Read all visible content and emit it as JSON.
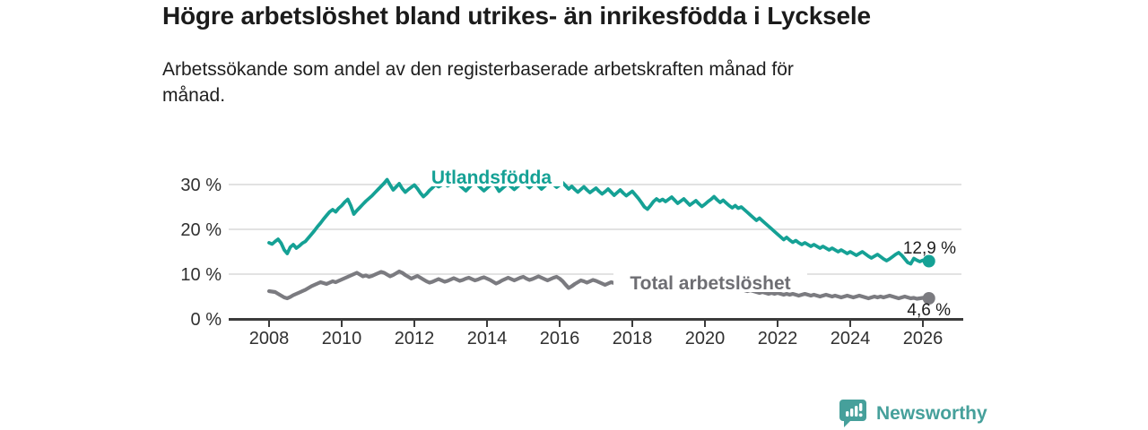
{
  "header": {
    "title": "Högre arbetslöshet bland utrikes- än inrikesfödda i Lycksele",
    "subtitle": "Arbetssökande som andel av den registerbaserade arbetskraften månad för\nmånad."
  },
  "chart_data": {
    "type": "line",
    "x_unit": "monthly",
    "x_start_year": 2008,
    "points_per_year": 12,
    "xlim": [
      2008,
      2027.1
    ],
    "ylim": [
      0,
      34
    ],
    "grid": "horizontal",
    "legend": "inline-labels",
    "x_tick_labels": [
      "2008",
      "2010",
      "2012",
      "2014",
      "2016",
      "2018",
      "2020",
      "2022",
      "2024",
      "2026"
    ],
    "x_tick_values": [
      2008,
      2010,
      2012,
      2014,
      2016,
      2018,
      2020,
      2022,
      2024,
      2026
    ],
    "y_tick_labels": [
      "0 %",
      "10 %",
      "20 %",
      "30 %"
    ],
    "y_tick_values": [
      0,
      10,
      20,
      30
    ],
    "axis_color": "#3b3b3b",
    "grid_color": "#d8d8d8",
    "tick_label_color": "#303030",
    "end_label_color": "#1e1e1e",
    "series": [
      {
        "name": "Utlandsfödda",
        "color": "#15a195",
        "label_color": "#15a195",
        "end_label": "12,9 %",
        "end_value": 12.9,
        "values": [
          17.0,
          16.7,
          17.3,
          17.8,
          16.9,
          15.4,
          14.6,
          16.0,
          16.6,
          15.8,
          16.3,
          16.9,
          17.3,
          18.1,
          18.9,
          19.7,
          20.6,
          21.4,
          22.3,
          23.1,
          23.9,
          24.4,
          23.9,
          24.7,
          25.3,
          26.1,
          26.7,
          25.3,
          23.4,
          24.2,
          24.9,
          25.6,
          26.3,
          26.9,
          27.5,
          28.2,
          28.9,
          29.6,
          30.3,
          31.1,
          29.9,
          28.8,
          29.5,
          30.2,
          29.1,
          28.3,
          28.9,
          29.4,
          29.9,
          29.1,
          28.1,
          27.3,
          27.9,
          28.7,
          29.3,
          30.0,
          29.5,
          29.9,
          30.3,
          29.7,
          30.1,
          31.4,
          30.6,
          29.8,
          29.2,
          28.6,
          29.3,
          30.0,
          30.5,
          29.9,
          29.2,
          28.6,
          29.2,
          29.8,
          30.3,
          29.6,
          28.5,
          29.1,
          29.7,
          30.2,
          29.5,
          28.9,
          29.5,
          30.1,
          30.5,
          29.9,
          29.3,
          29.9,
          30.4,
          29.7,
          29.0,
          29.6,
          30.2,
          30.7,
          30.0,
          29.4,
          29.9,
          30.4,
          29.7,
          29.0,
          29.6,
          28.9,
          28.3,
          28.9,
          29.5,
          28.8,
          28.2,
          28.7,
          29.2,
          28.5,
          27.9,
          28.4,
          29.0,
          28.3,
          27.6,
          28.2,
          28.8,
          28.1,
          27.5,
          28.0,
          28.5,
          27.7,
          26.9,
          26.0,
          25.0,
          24.5,
          25.3,
          26.2,
          26.8,
          26.3,
          26.7,
          26.2,
          26.7,
          27.2,
          26.5,
          25.8,
          26.3,
          26.8,
          26.1,
          25.4,
          25.9,
          26.4,
          25.7,
          25.1,
          25.6,
          26.2,
          26.7,
          27.3,
          26.6,
          26.0,
          26.5,
          25.9,
          25.3,
          24.8,
          25.3,
          24.7,
          25.0,
          24.4,
          23.8,
          23.2,
          22.6,
          22.0,
          22.5,
          21.9,
          21.3,
          20.7,
          20.1,
          19.5,
          18.9,
          18.3,
          17.7,
          18.2,
          17.6,
          17.1,
          17.5,
          17.0,
          16.6,
          17.0,
          16.6,
          16.2,
          16.6,
          16.2,
          15.8,
          16.2,
          15.8,
          15.4,
          15.8,
          15.4,
          15.0,
          15.4,
          15.0,
          14.6,
          15.0,
          14.6,
          14.2,
          14.6,
          15.0,
          14.5,
          14.0,
          13.6,
          14.0,
          14.4,
          13.9,
          13.4,
          13.0,
          13.4,
          13.9,
          14.4,
          14.8,
          14.2,
          13.4,
          12.6,
          12.3,
          13.5,
          13.1,
          12.8,
          13.1,
          12.9,
          12.9
        ]
      },
      {
        "name": "Total arbetslöshet",
        "color": "#7b7b80",
        "label_color": "#6e6e73",
        "end_label": "4,6 %",
        "end_value": 4.6,
        "values": [
          6.2,
          6.1,
          6.0,
          5.6,
          5.2,
          4.8,
          4.6,
          4.9,
          5.3,
          5.6,
          5.9,
          6.2,
          6.5,
          6.9,
          7.3,
          7.6,
          7.9,
          8.2,
          8.0,
          7.8,
          8.1,
          8.4,
          8.2,
          8.5,
          8.8,
          9.1,
          9.4,
          9.7,
          10.0,
          10.3,
          9.9,
          9.5,
          9.7,
          9.4,
          9.6,
          9.9,
          10.2,
          10.5,
          10.3,
          9.9,
          9.5,
          9.8,
          10.2,
          10.6,
          10.3,
          9.8,
          9.4,
          9.0,
          9.3,
          9.6,
          9.2,
          8.8,
          8.4,
          8.1,
          8.3,
          8.6,
          8.9,
          8.6,
          8.3,
          8.5,
          8.8,
          9.1,
          8.8,
          8.5,
          8.7,
          9.0,
          9.2,
          8.9,
          8.6,
          8.8,
          9.1,
          9.3,
          9.0,
          8.7,
          8.3,
          7.9,
          8.2,
          8.6,
          8.9,
          9.2,
          8.9,
          8.6,
          8.9,
          9.2,
          9.4,
          9.0,
          8.7,
          8.9,
          9.2,
          9.5,
          9.2,
          8.9,
          8.6,
          8.9,
          9.2,
          9.4,
          9.0,
          8.4,
          7.6,
          6.9,
          7.3,
          7.8,
          8.2,
          8.6,
          8.4,
          8.1,
          8.4,
          8.7,
          8.5,
          8.2,
          7.9,
          7.6,
          7.9,
          8.2,
          8.0,
          7.7,
          7.4,
          7.6,
          7.3,
          7.0,
          7.2,
          7.0,
          6.8,
          6.6,
          6.8,
          7.0,
          7.2,
          7.0,
          6.8,
          6.6,
          6.8,
          7.0,
          6.8,
          6.6,
          6.5,
          6.7,
          6.9,
          7.1,
          6.9,
          6.7,
          6.5,
          6.7,
          6.9,
          7.1,
          7.3,
          7.5,
          7.8,
          8.0,
          7.8,
          7.6,
          7.4,
          7.2,
          7.4,
          7.2,
          7.0,
          6.8,
          6.6,
          6.4,
          6.2,
          6.4,
          6.2,
          6.0,
          5.8,
          6.0,
          5.8,
          5.6,
          5.8,
          5.6,
          5.8,
          5.6,
          5.4,
          5.6,
          5.4,
          5.6,
          5.4,
          5.2,
          5.4,
          5.6,
          5.4,
          5.2,
          5.4,
          5.2,
          5.0,
          5.2,
          5.4,
          5.2,
          5.0,
          5.2,
          5.0,
          4.8,
          5.0,
          5.2,
          5.0,
          4.8,
          5.0,
          5.2,
          5.0,
          4.8,
          4.6,
          4.8,
          5.0,
          4.8,
          5.0,
          4.8,
          5.0,
          5.2,
          5.0,
          4.8,
          4.6,
          4.8,
          5.0,
          4.8,
          4.6,
          4.7,
          4.5,
          4.6,
          4.7,
          4.6,
          4.6
        ]
      }
    ]
  },
  "footer": {
    "brand": "Newsworthy",
    "logo_icon": "bar-chart-speech-bubble-icon",
    "brand_color": "#46a09b"
  }
}
